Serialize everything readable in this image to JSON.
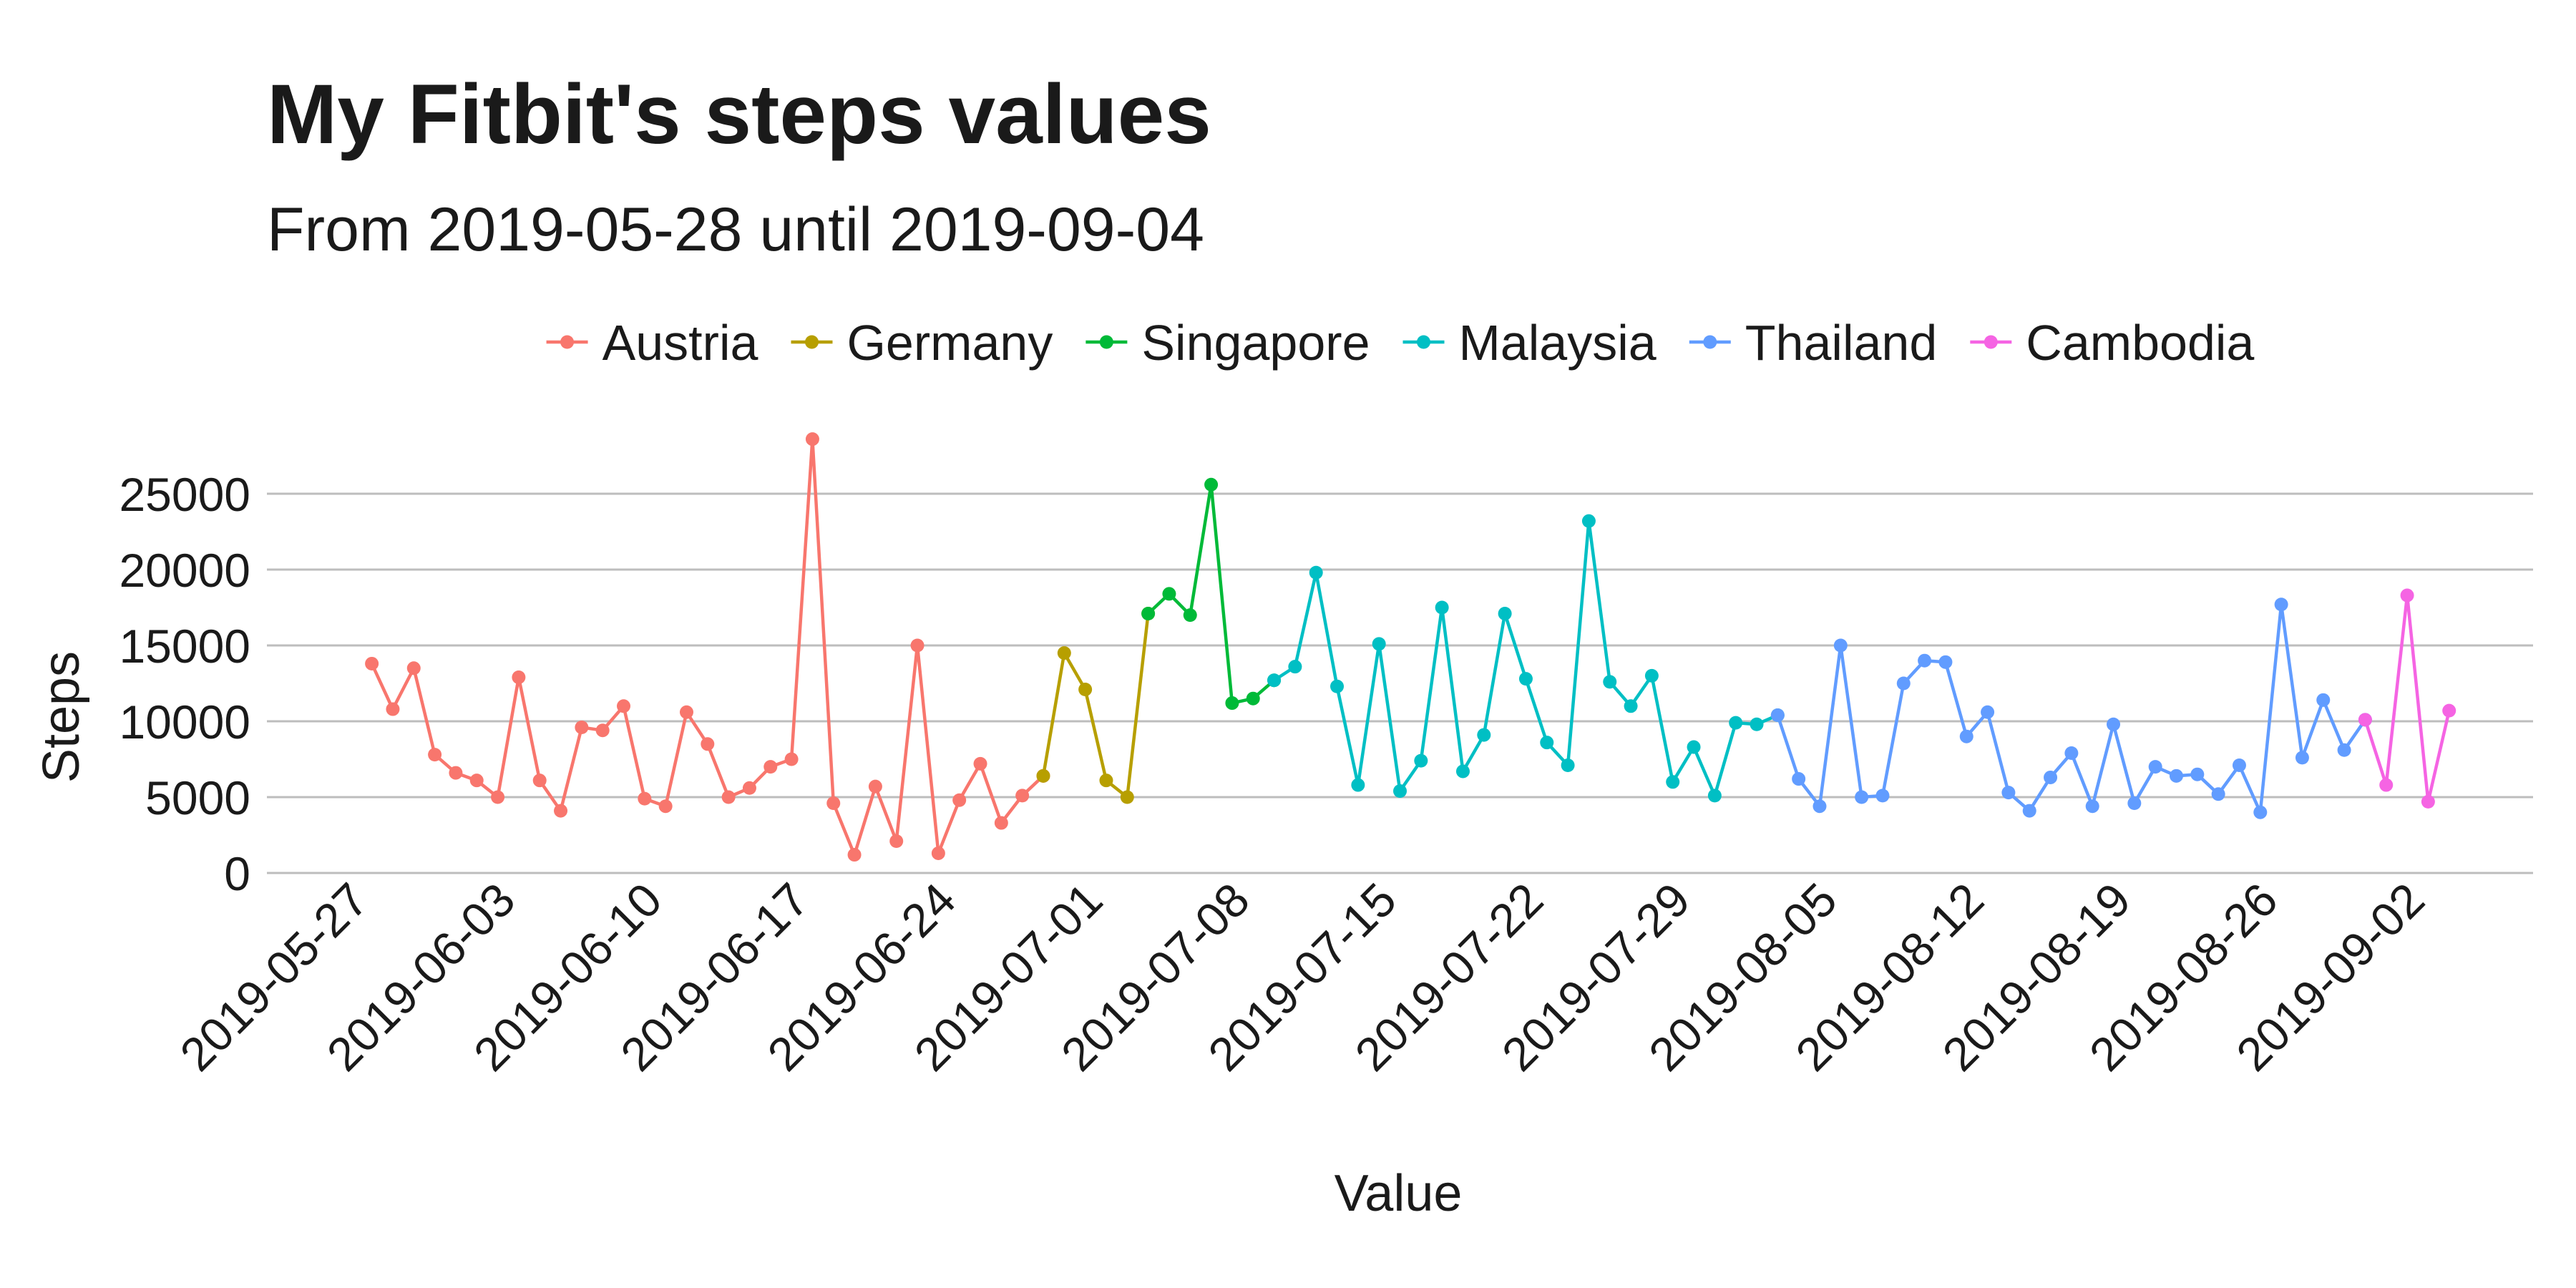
{
  "chart_data": {
    "type": "line",
    "title": "My Fitbit's steps values",
    "subtitle": "From 2019-05-28 until 2019-09-04",
    "xlabel": "Value",
    "ylabel": "Steps",
    "ylim": [
      0,
      29000
    ],
    "yticks": [
      0,
      5000,
      10000,
      15000,
      20000,
      25000
    ],
    "xticks": [
      "2019-05-27",
      "2019-06-03",
      "2019-06-10",
      "2019-06-17",
      "2019-06-24",
      "2019-07-01",
      "2019-07-08",
      "2019-07-15",
      "2019-07-22",
      "2019-07-29",
      "2019-08-05",
      "2019-08-12",
      "2019-08-19",
      "2019-08-26",
      "2019-09-02"
    ],
    "grid": "horizontal major",
    "legend_position": "top",
    "series": [
      {
        "name": "Austria",
        "color": "#F8766D",
        "points": [
          [
            "2019-05-28",
            13800
          ],
          [
            "2019-05-29",
            10800
          ],
          [
            "2019-05-30",
            13500
          ],
          [
            "2019-05-31",
            7800
          ],
          [
            "2019-06-01",
            6600
          ],
          [
            "2019-06-02",
            6100
          ],
          [
            "2019-06-03",
            5000
          ],
          [
            "2019-06-04",
            12900
          ],
          [
            "2019-06-05",
            6100
          ],
          [
            "2019-06-06",
            4100
          ],
          [
            "2019-06-07",
            9600
          ],
          [
            "2019-06-08",
            9400
          ],
          [
            "2019-06-09",
            11000
          ],
          [
            "2019-06-10",
            4900
          ],
          [
            "2019-06-11",
            4400
          ],
          [
            "2019-06-12",
            10600
          ],
          [
            "2019-06-13",
            8500
          ],
          [
            "2019-06-14",
            5000
          ],
          [
            "2019-06-15",
            5600
          ],
          [
            "2019-06-16",
            7000
          ],
          [
            "2019-06-17",
            7500
          ],
          [
            "2019-06-18",
            28600
          ],
          [
            "2019-06-19",
            4600
          ],
          [
            "2019-06-20",
            1200
          ],
          [
            "2019-06-21",
            5700
          ],
          [
            "2019-06-22",
            2100
          ],
          [
            "2019-06-23",
            15000
          ],
          [
            "2019-06-24",
            1300
          ],
          [
            "2019-06-25",
            4800
          ],
          [
            "2019-06-26",
            7200
          ],
          [
            "2019-06-27",
            3300
          ],
          [
            "2019-06-28",
            5100
          ],
          [
            "2019-06-29",
            6400
          ]
        ]
      },
      {
        "name": "Germany",
        "color": "#B79F00",
        "points": [
          [
            "2019-06-29",
            6400
          ],
          [
            "2019-06-30",
            14500
          ],
          [
            "2019-07-01",
            12100
          ],
          [
            "2019-07-02",
            6100
          ],
          [
            "2019-07-03",
            5000
          ],
          [
            "2019-07-04",
            17100
          ]
        ]
      },
      {
        "name": "Singapore",
        "color": "#00BA38",
        "points": [
          [
            "2019-07-04",
            17100
          ],
          [
            "2019-07-05",
            18400
          ],
          [
            "2019-07-06",
            17000
          ],
          [
            "2019-07-07",
            25600
          ],
          [
            "2019-07-08",
            11200
          ],
          [
            "2019-07-09",
            11500
          ],
          [
            "2019-07-10",
            12700
          ]
        ]
      },
      {
        "name": "Malaysia",
        "color": "#00BFC4",
        "points": [
          [
            "2019-07-10",
            12700
          ],
          [
            "2019-07-11",
            13600
          ],
          [
            "2019-07-12",
            19800
          ],
          [
            "2019-07-13",
            12300
          ],
          [
            "2019-07-14",
            5800
          ],
          [
            "2019-07-15",
            15100
          ],
          [
            "2019-07-16",
            5400
          ],
          [
            "2019-07-17",
            7400
          ],
          [
            "2019-07-18",
            17500
          ],
          [
            "2019-07-19",
            6700
          ],
          [
            "2019-07-20",
            9100
          ],
          [
            "2019-07-21",
            17100
          ],
          [
            "2019-07-22",
            12800
          ],
          [
            "2019-07-23",
            8600
          ],
          [
            "2019-07-24",
            7100
          ],
          [
            "2019-07-25",
            23200
          ],
          [
            "2019-07-26",
            12600
          ],
          [
            "2019-07-27",
            11000
          ],
          [
            "2019-07-28",
            13000
          ],
          [
            "2019-07-29",
            6000
          ],
          [
            "2019-07-30",
            8300
          ],
          [
            "2019-07-31",
            5100
          ],
          [
            "2019-08-01",
            9900
          ],
          [
            "2019-08-02",
            9800
          ],
          [
            "2019-08-03",
            10400
          ]
        ]
      },
      {
        "name": "Thailand",
        "color": "#619CFF",
        "points": [
          [
            "2019-08-03",
            10400
          ],
          [
            "2019-08-04",
            6200
          ],
          [
            "2019-08-05",
            4400
          ],
          [
            "2019-08-06",
            15000
          ],
          [
            "2019-08-07",
            5000
          ],
          [
            "2019-08-08",
            5100
          ],
          [
            "2019-08-09",
            12500
          ],
          [
            "2019-08-10",
            14000
          ],
          [
            "2019-08-11",
            13900
          ],
          [
            "2019-08-12",
            9000
          ],
          [
            "2019-08-13",
            10600
          ],
          [
            "2019-08-14",
            5300
          ],
          [
            "2019-08-15",
            4100
          ],
          [
            "2019-08-16",
            6300
          ],
          [
            "2019-08-17",
            7900
          ],
          [
            "2019-08-18",
            4400
          ],
          [
            "2019-08-19",
            9800
          ],
          [
            "2019-08-20",
            4600
          ],
          [
            "2019-08-21",
            7000
          ],
          [
            "2019-08-22",
            6400
          ],
          [
            "2019-08-23",
            6500
          ],
          [
            "2019-08-24",
            5200
          ],
          [
            "2019-08-25",
            7100
          ],
          [
            "2019-08-26",
            4000
          ],
          [
            "2019-08-27",
            17700
          ],
          [
            "2019-08-28",
            7600
          ],
          [
            "2019-08-29",
            11400
          ],
          [
            "2019-08-30",
            8100
          ],
          [
            "2019-08-31",
            10100
          ]
        ]
      },
      {
        "name": "Cambodia",
        "color": "#F564E3",
        "points": [
          [
            "2019-08-31",
            10100
          ],
          [
            "2019-09-01",
            5800
          ],
          [
            "2019-09-02",
            18300
          ],
          [
            "2019-09-03",
            4700
          ],
          [
            "2019-09-04",
            10700
          ]
        ]
      }
    ]
  }
}
